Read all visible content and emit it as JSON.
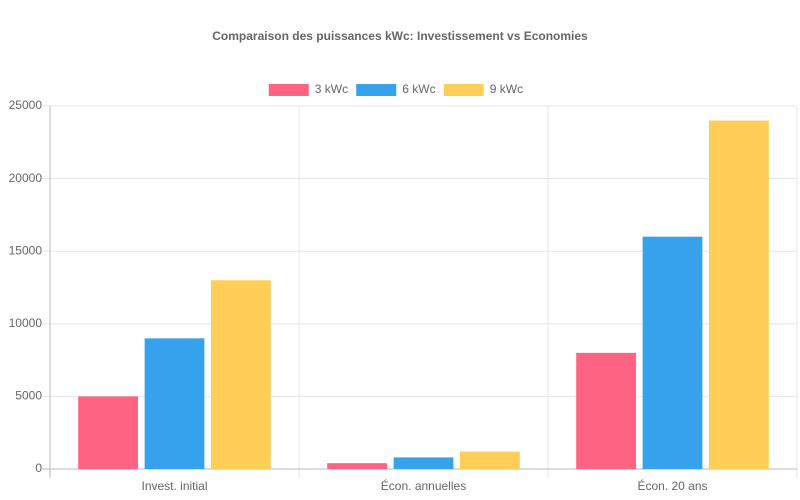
{
  "chart_data": {
    "type": "bar",
    "title": "Comparaison des puissances kWc: Investissement vs Economies",
    "categories": [
      "Invest. initial",
      "Écon. annuelles",
      "Écon. 20 ans"
    ],
    "series": [
      {
        "name": "3 kWc",
        "color": "#ff6384",
        "values": [
          5000,
          400,
          8000
        ]
      },
      {
        "name": "6 kWc",
        "color": "#36a2eb",
        "values": [
          9000,
          800,
          16000
        ]
      },
      {
        "name": "9 kWc",
        "color": "#ffce56",
        "values": [
          13000,
          1200,
          24000
        ]
      }
    ],
    "ylim": [
      0,
      25000
    ],
    "yticks": [
      0,
      5000,
      10000,
      15000,
      20000,
      25000
    ],
    "grid": true,
    "legend": "top"
  }
}
